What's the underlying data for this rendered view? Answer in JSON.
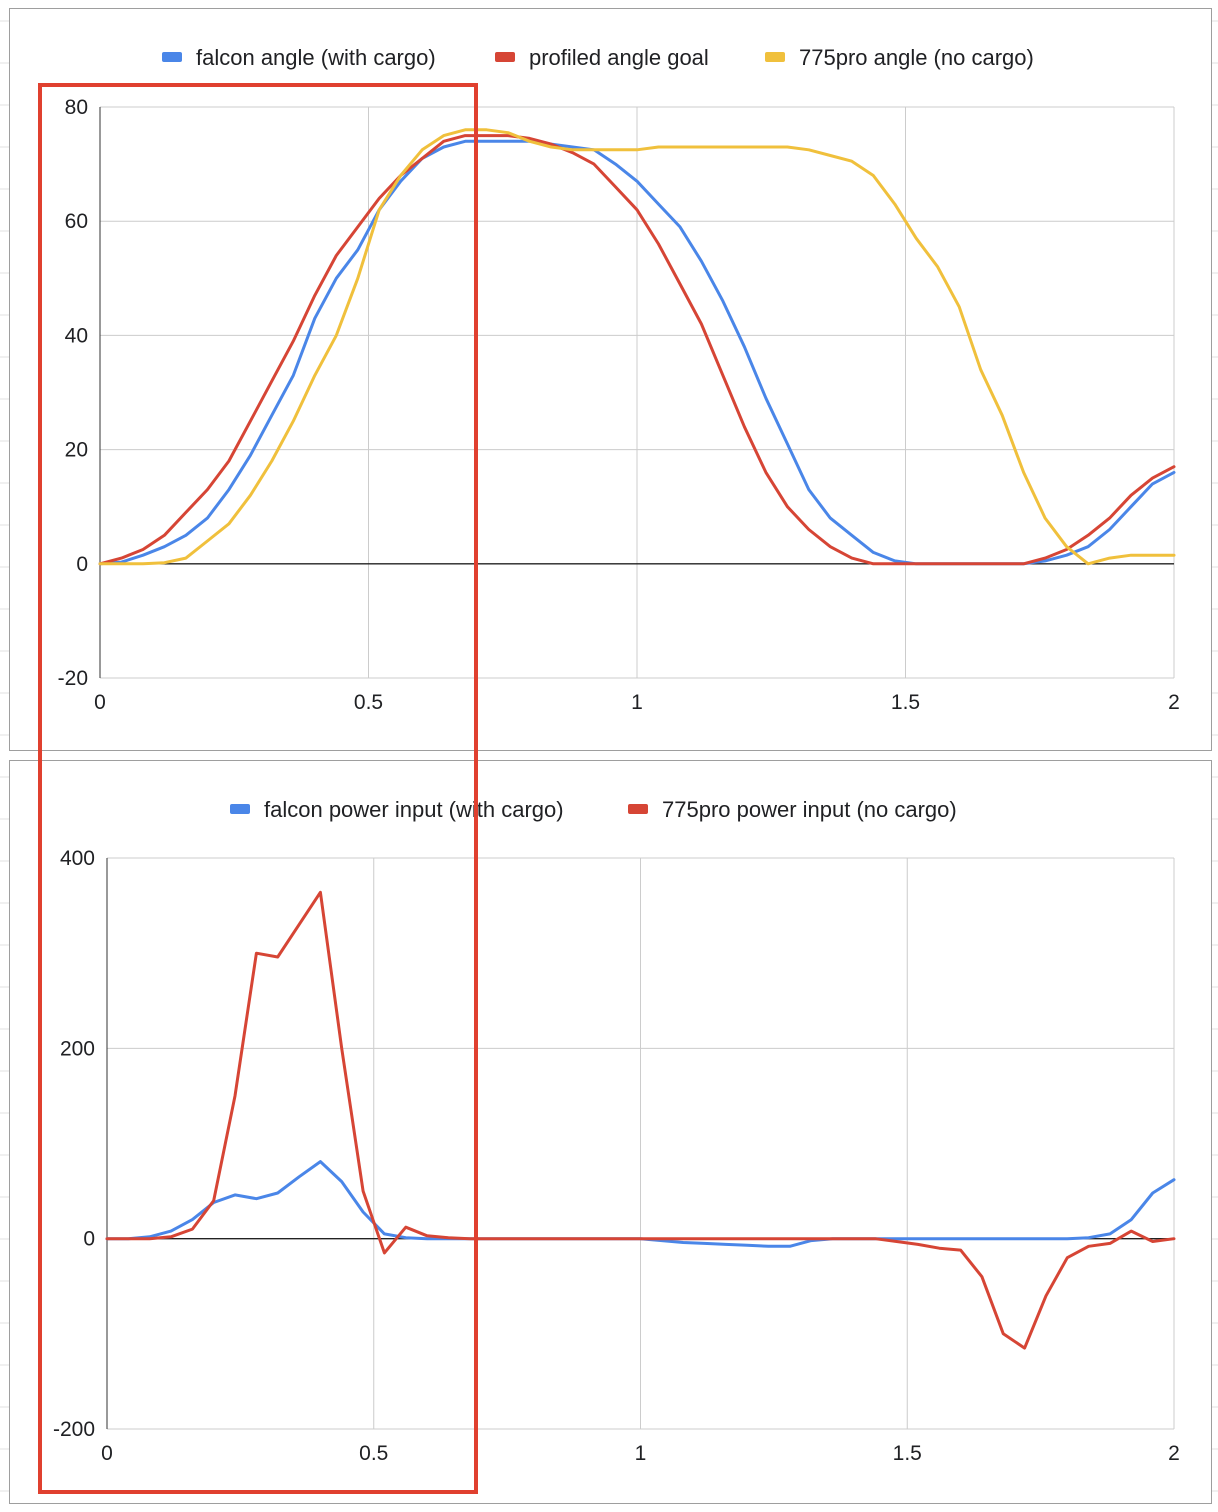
{
  "colors": {
    "blue": "#4a86e8",
    "red": "#d64535",
    "yellow": "#f0c03c",
    "highlight": "#e0402f",
    "grid": "#cccccc",
    "axis": "#333333"
  },
  "chart_data": [
    {
      "type": "line",
      "title": "",
      "legend_position": "top",
      "grid": true,
      "x": [
        0,
        0.04,
        0.08,
        0.12,
        0.16,
        0.2,
        0.24,
        0.28,
        0.32,
        0.36,
        0.4,
        0.44,
        0.48,
        0.52,
        0.56,
        0.6,
        0.64,
        0.68,
        0.72,
        0.76,
        0.8,
        0.84,
        0.88,
        0.92,
        0.96,
        1.0,
        1.04,
        1.08,
        1.12,
        1.16,
        1.2,
        1.24,
        1.28,
        1.32,
        1.36,
        1.4,
        1.44,
        1.48,
        1.52,
        1.56,
        1.6,
        1.64,
        1.68,
        1.72,
        1.76,
        1.8,
        1.84,
        1.88,
        1.92,
        1.96,
        2.0
      ],
      "xlim": [
        0,
        2
      ],
      "ylim": [
        -20,
        80
      ],
      "xticks": [
        "0",
        "0.5",
        "1",
        "1.5",
        "2"
      ],
      "yticks": [
        "-20",
        "0",
        "20",
        "40",
        "60",
        "80"
      ],
      "series": [
        {
          "name": "falcon angle (with cargo)",
          "color": "#4a86e8",
          "values": [
            0,
            0.3,
            1.5,
            3,
            5,
            8,
            13,
            19,
            26,
            33,
            43,
            50,
            55,
            62,
            67,
            71,
            73,
            74,
            74,
            74,
            74,
            73.5,
            73,
            72.5,
            70,
            67,
            63,
            59,
            53,
            46,
            38,
            29,
            21,
            13,
            8,
            5,
            2,
            0.5,
            0,
            0,
            0,
            0,
            0,
            0,
            0.5,
            1.5,
            3,
            6,
            10,
            14,
            16
          ]
        },
        {
          "name": "profiled angle goal",
          "color": "#d64535",
          "values": [
            0,
            1,
            2.5,
            5,
            9,
            13,
            18,
            25,
            32,
            39,
            47,
            54,
            59,
            64,
            68,
            71,
            74,
            75,
            75,
            75,
            74.5,
            73.5,
            72,
            70,
            66,
            62,
            56,
            49,
            42,
            33,
            24,
            16,
            10,
            6,
            3,
            1,
            0,
            0,
            0,
            0,
            0,
            0,
            0,
            0,
            1,
            2.5,
            5,
            8,
            12,
            15,
            17
          ]
        },
        {
          "name": "775pro angle (no cargo)",
          "color": "#f0c03c",
          "values": [
            0,
            0,
            0,
            0.2,
            1,
            4,
            7,
            12,
            18,
            25,
            33,
            40,
            50,
            62,
            68,
            72.5,
            75,
            76,
            76,
            75.5,
            74,
            73,
            72.5,
            72.5,
            72.5,
            72.5,
            73,
            73,
            73,
            73,
            73,
            73,
            73,
            72.5,
            71.5,
            70.5,
            68,
            63,
            57,
            52,
            45,
            34,
            26,
            16,
            8,
            3,
            0,
            1,
            1.5,
            1.5,
            1.5
          ]
        }
      ]
    },
    {
      "type": "line",
      "title": "",
      "legend_position": "top",
      "grid": true,
      "x": [
        0,
        0.04,
        0.08,
        0.12,
        0.16,
        0.2,
        0.24,
        0.28,
        0.32,
        0.36,
        0.4,
        0.44,
        0.48,
        0.52,
        0.56,
        0.6,
        0.64,
        0.68,
        0.72,
        0.76,
        0.8,
        0.84,
        0.88,
        0.92,
        0.96,
        1.0,
        1.04,
        1.08,
        1.12,
        1.16,
        1.2,
        1.24,
        1.28,
        1.32,
        1.36,
        1.4,
        1.44,
        1.48,
        1.52,
        1.56,
        1.6,
        1.64,
        1.68,
        1.72,
        1.76,
        1.8,
        1.84,
        1.88,
        1.92,
        1.96,
        2.0
      ],
      "xlim": [
        0,
        2
      ],
      "ylim": [
        -200,
        400
      ],
      "xticks": [
        "0",
        "0.5",
        "1",
        "1.5",
        "2"
      ],
      "yticks": [
        "-200",
        "0",
        "200",
        "400"
      ],
      "series": [
        {
          "name": "falcon power input (with cargo)",
          "color": "#4a86e8",
          "values": [
            0,
            0,
            2,
            8,
            20,
            38,
            46,
            42,
            48,
            65,
            81,
            60,
            28,
            5,
            1,
            0,
            0,
            0,
            0,
            0,
            0,
            0,
            0,
            0,
            0,
            0,
            -2,
            -4,
            -5,
            -6,
            -7,
            -8,
            -8,
            -2,
            0,
            0,
            0,
            0,
            0,
            0,
            0,
            0,
            0,
            0,
            0,
            0,
            1,
            5,
            20,
            48,
            62
          ]
        },
        {
          "name": "775pro power input (no cargo)",
          "color": "#d64535",
          "values": [
            0,
            0,
            0,
            2,
            10,
            40,
            150,
            300,
            296,
            330,
            364,
            200,
            50,
            -15,
            12,
            3,
            1,
            0,
            0,
            0,
            0,
            0,
            0,
            0,
            0,
            0,
            0,
            0,
            0,
            0,
            0,
            0,
            0,
            0,
            0,
            0,
            0,
            -3,
            -6,
            -10,
            -12,
            -40,
            -100,
            -115,
            -60,
            -20,
            -8,
            -5,
            8,
            -3,
            0
          ]
        }
      ]
    }
  ]
}
